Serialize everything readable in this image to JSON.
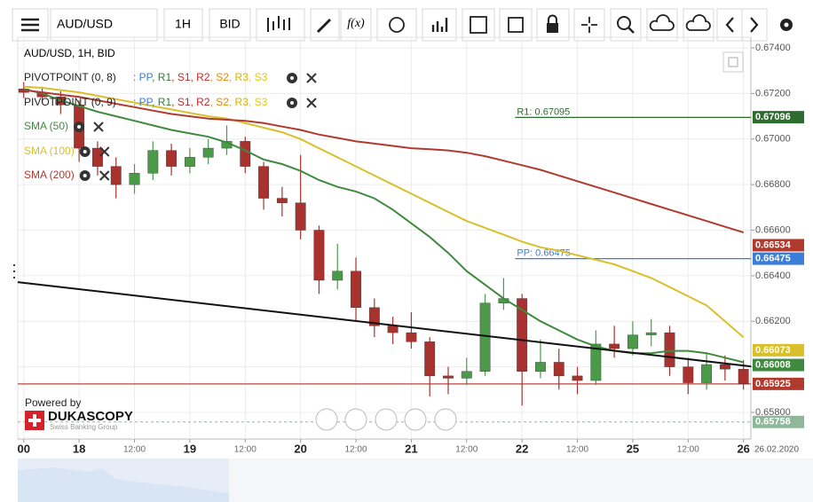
{
  "toolbar": {
    "symbol": "AUD/USD",
    "timeframe": "1H",
    "side": "BID",
    "function_label": "f(x)"
  },
  "indicators": [
    {
      "name": "PIVOTPOINT (0, 8)",
      "fields": [
        {
          "text": ": PP",
          "color": "#3b7dd8"
        },
        {
          "text": ", R1",
          "color": "#2e7d32"
        },
        {
          "text": ", S1",
          "color": "#c62828"
        },
        {
          "text": ", R2",
          "color": "#c62828"
        },
        {
          "text": ", S2",
          "color": "#e68a00"
        },
        {
          "text": ", R3",
          "color": "#d4b400"
        },
        {
          "text": ", S3",
          "color": "#e6c800"
        }
      ]
    },
    {
      "name": "PIVOTPOINT (0, 9)",
      "fields": [
        {
          "text": ": PP",
          "color": "#3b7dd8"
        },
        {
          "text": ", R1",
          "color": "#2e7d32"
        },
        {
          "text": ", S1",
          "color": "#c62828"
        },
        {
          "text": ", R2",
          "color": "#c62828"
        },
        {
          "text": ", S2",
          "color": "#e68a00"
        },
        {
          "text": ", R3",
          "color": "#d4b400"
        },
        {
          "text": ", S3",
          "color": "#e6c800"
        }
      ]
    }
  ],
  "branding": {
    "powered": "Powered by",
    "name": "DUKASCOPY",
    "tagline": "Swiss Banking Group"
  },
  "chart_data": {
    "type": "candlestick",
    "title": "AUD/USD, 1H, BID",
    "up_color": "#4a9a4a",
    "down_color": "#a8322d",
    "x": [
      -12,
      -8,
      -4,
      0,
      4,
      8,
      12,
      16,
      20,
      24,
      28,
      32,
      36,
      40,
      44,
      48,
      52,
      56,
      60,
      64,
      68,
      72,
      76,
      80,
      84,
      88,
      92,
      96,
      100,
      104,
      108,
      112,
      116,
      120,
      124,
      128,
      132,
      136,
      140,
      144
    ],
    "open": [
      0.6722,
      0.67205,
      0.67185,
      0.6715,
      0.6696,
      0.6688,
      0.668,
      0.6685,
      0.6695,
      0.6688,
      0.6692,
      0.6696,
      0.6699,
      0.6688,
      0.6674,
      0.6672,
      0.666,
      0.6638,
      0.6642,
      0.6626,
      0.6618,
      0.6615,
      0.6611,
      0.6596,
      0.6595,
      0.6598,
      0.6628,
      0.663,
      0.6598,
      0.6602,
      0.6596,
      0.6594,
      0.661,
      0.6608,
      0.6614,
      0.6615,
      0.66,
      0.6593,
      0.6601,
      0.6599
    ],
    "high": [
      0.6725,
      0.6723,
      0.6721,
      0.6717,
      0.6699,
      0.6692,
      0.6689,
      0.6699,
      0.6698,
      0.6696,
      0.67,
      0.6706,
      0.6701,
      0.669,
      0.6679,
      0.6693,
      0.6662,
      0.6654,
      0.6648,
      0.663,
      0.6622,
      0.6624,
      0.6613,
      0.66,
      0.6604,
      0.6632,
      0.6639,
      0.6632,
      0.6612,
      0.6608,
      0.66,
      0.6616,
      0.6618,
      0.662,
      0.6621,
      0.6618,
      0.6604,
      0.6606,
      0.6605,
      0.6603
    ],
    "low": [
      0.6718,
      0.6716,
      0.6711,
      0.669,
      0.6684,
      0.6674,
      0.6676,
      0.6682,
      0.6684,
      0.6685,
      0.6689,
      0.6693,
      0.6685,
      0.6669,
      0.6666,
      0.6656,
      0.6632,
      0.6634,
      0.662,
      0.6613,
      0.661,
      0.6608,
      0.6587,
      0.6588,
      0.6592,
      0.6596,
      0.6625,
      0.6583,
      0.6595,
      0.659,
      0.6588,
      0.6592,
      0.6604,
      0.6605,
      0.6609,
      0.6596,
      0.6588,
      0.659,
      0.6594,
      0.659
    ],
    "close": [
      0.67205,
      0.67185,
      0.6715,
      0.6696,
      0.6688,
      0.668,
      0.6685,
      0.6695,
      0.6688,
      0.6692,
      0.6696,
      0.6699,
      0.6688,
      0.6674,
      0.6672,
      0.666,
      0.6638,
      0.6642,
      0.6626,
      0.6618,
      0.6615,
      0.6611,
      0.6596,
      0.6595,
      0.6598,
      0.6628,
      0.663,
      0.6598,
      0.6602,
      0.6596,
      0.6594,
      0.661,
      0.6608,
      0.6614,
      0.6615,
      0.66,
      0.6593,
      0.6601,
      0.6599,
      0.65925
    ],
    "series": [
      {
        "name": "SMA (50)",
        "color": "#3f8a3f",
        "values": [
          0.6722,
          0.672,
          0.6717,
          0.67145,
          0.6712,
          0.671,
          0.6708,
          0.6706,
          0.6704,
          0.67025,
          0.6701,
          0.66985,
          0.6695,
          0.6691,
          0.6689,
          0.6686,
          0.6682,
          0.6679,
          0.6677,
          0.6674,
          0.6669,
          0.6663,
          0.6657,
          0.665,
          0.6642,
          0.6636,
          0.663,
          0.6625,
          0.662,
          0.6616,
          0.6612,
          0.6609,
          0.6607,
          0.6606,
          0.6606,
          0.6607,
          0.6607,
          0.6606,
          0.6604,
          0.6602
        ]
      },
      {
        "name": "SMA (100)",
        "color": "#d9bf2a",
        "values": [
          0.6723,
          0.67225,
          0.67215,
          0.67205,
          0.6719,
          0.67175,
          0.6716,
          0.67145,
          0.6713,
          0.67115,
          0.671,
          0.6709,
          0.6707,
          0.6705,
          0.6703,
          0.67,
          0.6696,
          0.6692,
          0.6688,
          0.6684,
          0.668,
          0.6676,
          0.6672,
          0.6668,
          0.6664,
          0.6661,
          0.6658,
          0.6655,
          0.66525,
          0.6651,
          0.6649,
          0.6647,
          0.6645,
          0.6642,
          0.6639,
          0.6635,
          0.6631,
          0.6627,
          0.662,
          0.6613
        ]
      },
      {
        "name": "SMA (200)",
        "color": "#b03a2e",
        "values": [
          0.67215,
          0.67205,
          0.67195,
          0.67185,
          0.6717,
          0.67155,
          0.6714,
          0.67125,
          0.6711,
          0.671,
          0.6709,
          0.67085,
          0.6708,
          0.6707,
          0.67055,
          0.6704,
          0.6702,
          0.67005,
          0.6699,
          0.6698,
          0.6697,
          0.6696,
          0.66955,
          0.6695,
          0.6694,
          0.66925,
          0.66905,
          0.66885,
          0.66865,
          0.6684,
          0.66815,
          0.6679,
          0.66765,
          0.6674,
          0.66715,
          0.6669,
          0.66665,
          0.6664,
          0.66615,
          0.6659
        ]
      }
    ],
    "trendline": {
      "color": "#111111",
      "x": [
        -13.3,
        145.6
      ],
      "values": [
        0.66372,
        0.66002
      ]
    },
    "levels": [
      {
        "label": "R1: 0.67095",
        "value": 0.67095,
        "color": "#2e6b2e",
        "x_start": 94.5
      },
      {
        "label": "PP: 0.66475",
        "value": 0.66475,
        "color": "#3b7dd8",
        "x_start": 94.5
      },
      {
        "value": 0.65925,
        "color": "#b5473f",
        "x_start": -13.3
      }
    ],
    "price_tags": [
      {
        "value": 0.67096,
        "color": "#2e6b2e"
      },
      {
        "value": 0.66534,
        "color": "#b03a2e"
      },
      {
        "value": 0.66475,
        "color": "#3b7dd8"
      },
      {
        "value": 0.66073,
        "color": "#d9bf2a"
      },
      {
        "value": 0.66008,
        "color": "#3f8a3f"
      },
      {
        "value": 0.65925,
        "color": "#b03a2e"
      },
      {
        "value": 0.65758,
        "color": "#8fb89a"
      }
    ],
    "xlim": [
      -13.3,
      145.6
    ],
    "ylim": [
      0.65683,
      0.67447
    ],
    "yticks": [
      {
        "value": 0.674,
        "label": "0.67400"
      },
      {
        "value": 0.672,
        "label": "0.67200"
      },
      {
        "value": 0.67,
        "label": "0.67000"
      },
      {
        "value": 0.668,
        "label": "0.66800"
      },
      {
        "value": 0.666,
        "label": "0.66600"
      },
      {
        "value": 0.664,
        "label": "0.66400"
      },
      {
        "value": 0.662,
        "label": "0.66200"
      },
      {
        "value": 0.66,
        "label": "0.66000"
      },
      {
        "value": 0.658,
        "label": "0.65800"
      }
    ],
    "xticks": [
      {
        "value": -12,
        "label": "00"
      },
      {
        "value": 0,
        "label": "18"
      },
      {
        "value": 12,
        "label": "12:00"
      },
      {
        "value": 24,
        "label": "19"
      },
      {
        "value": 36,
        "label": "12:00"
      },
      {
        "value": 48,
        "label": "20"
      },
      {
        "value": 60,
        "label": "12:00"
      },
      {
        "value": 72,
        "label": "21"
      },
      {
        "value": 84,
        "label": "12:00"
      },
      {
        "value": 96,
        "label": "22"
      },
      {
        "value": 108,
        "label": "12:00"
      },
      {
        "value": 120,
        "label": "25"
      },
      {
        "value": 132,
        "label": "12:00"
      },
      {
        "value": 144,
        "label": "26"
      }
    ],
    "x_end_label": "26.02.2020",
    "grid": true
  }
}
